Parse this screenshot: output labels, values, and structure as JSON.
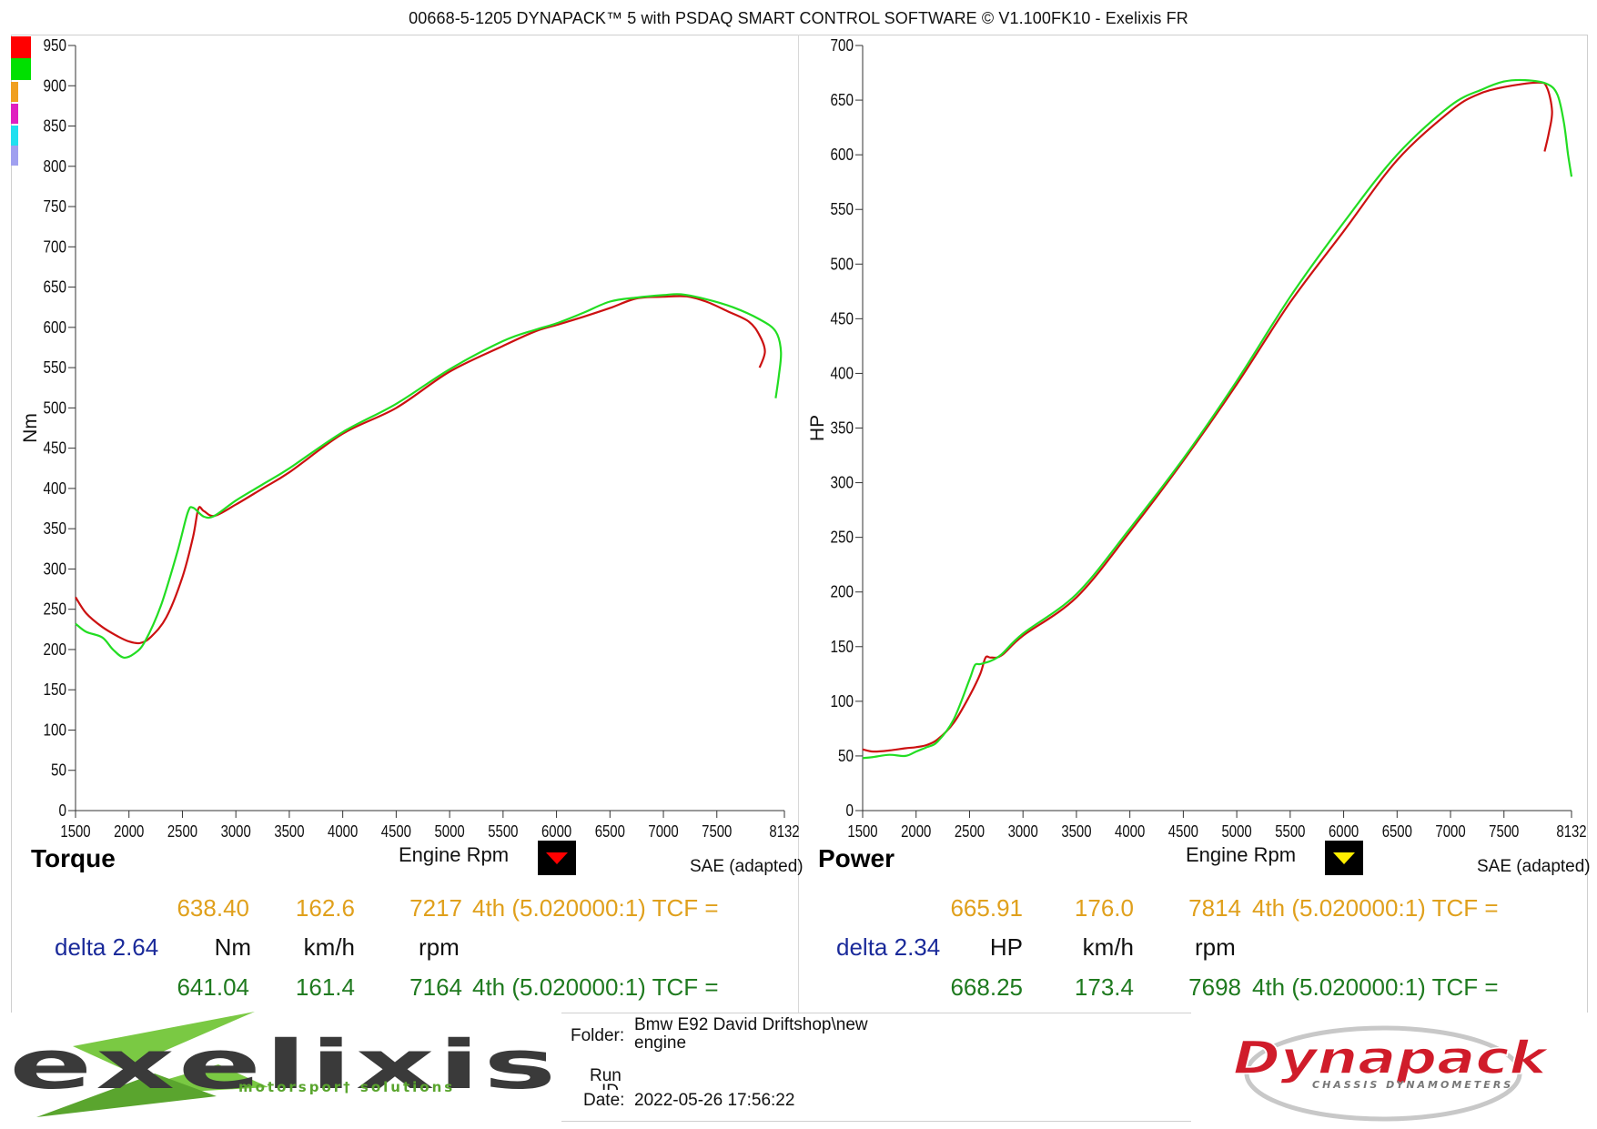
{
  "header": {
    "title": "00668-5-1205 DYNAPACK™ 5 with PSDAQ SMART CONTROL SOFTWARE © V1.100FK10 - Exelixis FR"
  },
  "legend_colors": [
    "#ff0000",
    "#00e000",
    "#f0a020",
    "#e020c0",
    "#20e0f0",
    "#a0a0f0"
  ],
  "torque_panel": {
    "title": "Torque",
    "xlabel": "Engine Rpm",
    "sae": "SAE (adapted)",
    "marker_color": "#ff0000",
    "readout": {
      "run1": {
        "value": "638.40",
        "speed": "162.6",
        "rpm": "7217",
        "gear": "4th (5.020000:1) TCF ="
      },
      "units": {
        "delta": "delta 2.64",
        "value_unit": "Nm",
        "speed_unit": "km/h",
        "rpm_unit": "rpm"
      },
      "run2": {
        "value": "641.04",
        "speed": "161.4",
        "rpm": "7164",
        "gear": "4th (5.020000:1) TCF ="
      }
    }
  },
  "power_panel": {
    "title": "Power",
    "xlabel": "Engine Rpm",
    "sae": "SAE (adapted)",
    "marker_color": "#ffee00",
    "readout": {
      "run1": {
        "value": "665.91",
        "speed": "176.0",
        "rpm": "7814",
        "gear": "4th (5.020000:1) TCF ="
      },
      "units": {
        "delta": "delta 2.34",
        "value_unit": "HP",
        "speed_unit": "km/h",
        "rpm_unit": "rpm"
      },
      "run2": {
        "value": "668.25",
        "speed": "173.4",
        "rpm": "7698",
        "gear": "4th (5.020000:1) TCF ="
      }
    }
  },
  "info": {
    "folder_label": "Folder:",
    "folder_value_line1": "Bmw E92 David Driftshop\\new",
    "folder_value_line2": "engine",
    "run_label": "Run",
    "run_label2": "ID",
    "date_label": "Date:",
    "date_value": "2022-05-26 17:56:22"
  },
  "logos": {
    "exelixis_text": "exelixis",
    "exelixis_sub": "motorspor† solutions",
    "dynapack_text": "Dynapack",
    "dynapack_sub": "CHASSIS DYNAMOMETERS"
  },
  "chart_data": [
    {
      "type": "line",
      "title": "Torque",
      "xlabel": "Engine Rpm",
      "ylabel": "Nm",
      "xlim": [
        1500,
        8132
      ],
      "ylim": [
        0,
        950
      ],
      "xticks": [
        1500,
        2000,
        2500,
        3000,
        3500,
        4000,
        4500,
        5000,
        5500,
        6000,
        6500,
        7000,
        7500,
        8132
      ],
      "yticks": [
        0,
        50,
        100,
        150,
        200,
        250,
        300,
        350,
        400,
        450,
        500,
        550,
        600,
        650,
        700,
        750,
        800,
        850,
        900,
        950
      ],
      "series": [
        {
          "color": "#cc1111",
          "x": [
            1500,
            1600,
            1750,
            1900,
            2000,
            2100,
            2200,
            2350,
            2500,
            2600,
            2650,
            2700,
            2800,
            3000,
            3250,
            3500,
            4000,
            4500,
            5000,
            5500,
            5800,
            6000,
            6250,
            6500,
            6750,
            7000,
            7217,
            7400,
            7600,
            7800,
            7900,
            7950,
            7900
          ],
          "y": [
            265,
            245,
            228,
            216,
            210,
            208,
            215,
            240,
            290,
            340,
            375,
            372,
            366,
            380,
            400,
            420,
            468,
            500,
            545,
            577,
            595,
            603,
            613,
            624,
            636,
            638,
            638.4,
            632,
            620,
            607,
            590,
            570,
            550
          ]
        },
        {
          "color": "#22dd22",
          "x": [
            1500,
            1600,
            1750,
            1850,
            1950,
            2050,
            2150,
            2300,
            2450,
            2550,
            2600,
            2700,
            2800,
            3000,
            3250,
            3500,
            4000,
            4500,
            5000,
            5500,
            5800,
            6000,
            6250,
            6500,
            6750,
            7000,
            7164,
            7400,
            7650,
            7900,
            8050,
            8100,
            8080,
            8050
          ],
          "y": [
            232,
            222,
            215,
            200,
            190,
            195,
            210,
            255,
            320,
            370,
            376,
            365,
            366,
            385,
            405,
            425,
            470,
            505,
            548,
            583,
            597,
            605,
            618,
            632,
            637,
            640,
            641.04,
            635,
            625,
            610,
            595,
            570,
            540,
            512
          ]
        }
      ]
    },
    {
      "type": "line",
      "title": "Power",
      "xlabel": "Engine Rpm",
      "ylabel": "HP",
      "xlim": [
        1500,
        8132
      ],
      "ylim": [
        0,
        700
      ],
      "xticks": [
        1500,
        2000,
        2500,
        3000,
        3500,
        4000,
        4500,
        5000,
        5500,
        6000,
        6500,
        7000,
        7500,
        8132
      ],
      "yticks": [
        0,
        50,
        100,
        150,
        200,
        250,
        300,
        350,
        400,
        450,
        500,
        550,
        600,
        650,
        700
      ],
      "series": [
        {
          "color": "#cc1111",
          "x": [
            1500,
            1600,
            1750,
            1900,
            2000,
            2100,
            2200,
            2350,
            2500,
            2600,
            2650,
            2700,
            2800,
            3000,
            3500,
            4000,
            4500,
            5000,
            5500,
            6000,
            6500,
            7000,
            7250,
            7500,
            7814,
            7900,
            7950,
            7920,
            7880
          ],
          "y": [
            56,
            54,
            55,
            57,
            58,
            60,
            65,
            80,
            105,
            125,
            140,
            140,
            142,
            160,
            195,
            255,
            320,
            390,
            465,
            530,
            595,
            640,
            655,
            662,
            666,
            662,
            640,
            620,
            603
          ]
        },
        {
          "color": "#22dd22",
          "x": [
            1500,
            1600,
            1750,
            1900,
            2000,
            2100,
            2200,
            2350,
            2500,
            2550,
            2600,
            2700,
            2800,
            3000,
            3500,
            4000,
            4500,
            5000,
            5500,
            6000,
            6500,
            7000,
            7300,
            7500,
            7698,
            7900,
            8000,
            8060,
            8100,
            8132
          ],
          "y": [
            48,
            49,
            51,
            50,
            54,
            58,
            63,
            83,
            120,
            133,
            134,
            137,
            143,
            162,
            198,
            258,
            322,
            393,
            470,
            538,
            600,
            645,
            660,
            667,
            668.25,
            665,
            655,
            630,
            600,
            580
          ]
        }
      ]
    }
  ]
}
